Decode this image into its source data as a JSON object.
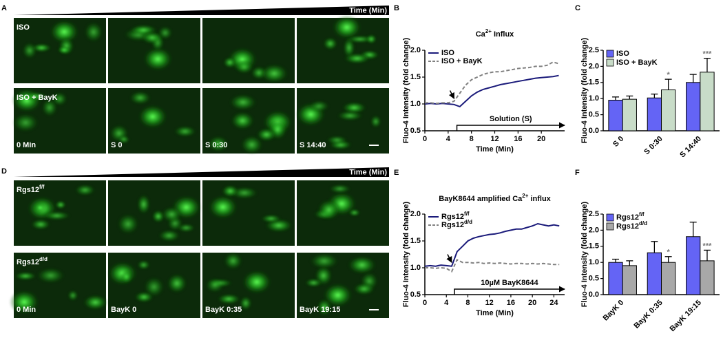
{
  "panel_labels": [
    "A",
    "B",
    "C",
    "D",
    "E",
    "F"
  ],
  "image_panels": [
    {
      "time_label": "Time (Min)",
      "rows": [
        {
          "label": "ISO"
        },
        {
          "label": "ISO + BayK"
        }
      ],
      "captions": [
        "0 Min",
        "S 0",
        "S 0:30",
        "S 14:40"
      ]
    },
    {
      "time_label": "Time (Min)",
      "rows": [
        {
          "label": "Rgs12",
          "label_sup": "f/f"
        },
        {
          "label": "Rgs12",
          "label_sup": "d/d"
        }
      ],
      "captions": [
        "0 Min",
        "BayK 0",
        "BayK 0:35",
        "BayK 19:15"
      ]
    }
  ],
  "chart_data": [
    {
      "type": "line",
      "title": [
        "Ca",
        "2+",
        " Influx"
      ],
      "x_label": "Time (Min)",
      "y_label": "Fluo-4 Intensity (fold change)",
      "x": [
        0,
        1,
        2,
        3,
        4,
        5,
        6,
        7,
        8,
        9,
        10,
        11,
        12,
        13,
        14,
        15,
        16,
        17,
        18,
        19,
        20,
        21,
        22,
        23
      ],
      "series": [
        {
          "name": "ISO",
          "color": "#1a1a7a",
          "line_style": "solid",
          "values": [
            1.0,
            1.01,
            1.0,
            1.01,
            1.0,
            0.99,
            0.95,
            1.05,
            1.15,
            1.22,
            1.27,
            1.3,
            1.33,
            1.36,
            1.38,
            1.4,
            1.42,
            1.44,
            1.46,
            1.48,
            1.49,
            1.5,
            1.51,
            1.53
          ]
        },
        {
          "name": "ISO + BayK",
          "color": "#808080",
          "line_style": "dashed",
          "values": [
            1.02,
            1.02,
            1.01,
            1.02,
            1.02,
            1.05,
            1.2,
            1.35,
            1.45,
            1.5,
            1.55,
            1.58,
            1.6,
            1.6,
            1.62,
            1.64,
            1.66,
            1.67,
            1.68,
            1.7,
            1.7,
            1.72,
            1.78,
            1.75
          ]
        }
      ],
      "annotation": {
        "text": "Solution (S)",
        "start": 5.5
      },
      "xlim": [
        0,
        24
      ],
      "xticks": [
        0,
        4,
        8,
        12,
        16,
        20
      ],
      "ylim": [
        0.5,
        2.0
      ],
      "yticks": [
        0.5,
        {
          "value": 1.0,
          "label": "1.0"
        },
        1.5,
        {
          "value": 2.0,
          "label": "2.0"
        }
      ]
    },
    {
      "type": "bar",
      "y_label": "Fluo-4 Intensity (fold change)",
      "categories": [
        "S 0",
        "S 0:30",
        "S 14:40"
      ],
      "series": [
        {
          "name": "ISO",
          "color": "#6464f5",
          "values": [
            0.95,
            1.02,
            1.5
          ],
          "errors": [
            0.1,
            0.12,
            0.25
          ],
          "annotations": [
            null,
            null,
            null
          ]
        },
        {
          "name": "ISO + BayK",
          "color": "#c8dcc8",
          "values": [
            0.98,
            1.27,
            1.82
          ],
          "errors": [
            0.1,
            0.33,
            0.43
          ],
          "annotations": [
            null,
            "*",
            "***"
          ]
        }
      ],
      "ylim": [
        0,
        2.5
      ],
      "yticks": [
        {
          "value": 0,
          "label": "0.0"
        },
        0.5,
        {
          "value": 1.0,
          "label": "1.0"
        },
        1.5,
        {
          "value": 2.0,
          "label": "2.0"
        },
        2.5
      ]
    },
    {
      "type": "line",
      "title": [
        "BayK8644 amplified Ca",
        "2+",
        " influx"
      ],
      "x_label": "Time (Min)",
      "y_label": "Fluo-4 Intensity (fold change)",
      "x": [
        0,
        1,
        2,
        3,
        4,
        5,
        6,
        7,
        8,
        9,
        10,
        11,
        12,
        13,
        14,
        15,
        16,
        17,
        18,
        19,
        20,
        21,
        22,
        23,
        24,
        25
      ],
      "series": [
        {
          "name": "Rgs12",
          "name_sup": "f/f",
          "color": "#1a1a7a",
          "line_style": "solid",
          "values": [
            1.03,
            1.04,
            1.03,
            1.05,
            1.04,
            1.03,
            1.3,
            1.4,
            1.5,
            1.55,
            1.58,
            1.6,
            1.62,
            1.63,
            1.65,
            1.68,
            1.7,
            1.72,
            1.72,
            1.75,
            1.78,
            1.82,
            1.8,
            1.78,
            1.8,
            1.78
          ]
        },
        {
          "name": "Rgs12",
          "name_sup": "d/d",
          "color": "#808080",
          "line_style": "dashed",
          "values": [
            1.0,
            1.0,
            0.99,
            1.0,
            0.99,
            0.93,
            1.15,
            1.1,
            1.1,
            1.09,
            1.1,
            1.08,
            1.09,
            1.08,
            1.09,
            1.08,
            1.07,
            1.08,
            1.08,
            1.07,
            1.08,
            1.07,
            1.08,
            1.07,
            1.06,
            1.06
          ]
        }
      ],
      "annotation": {
        "text": "10µM BayK8644",
        "start": 5.5
      },
      "xlim": [
        0,
        26
      ],
      "xticks": [
        0,
        4,
        8,
        12,
        16,
        20,
        24
      ],
      "ylim": [
        0.5,
        2.0
      ],
      "yticks": [
        0.5,
        {
          "value": 1.0,
          "label": "1.0"
        },
        1.5,
        {
          "value": 2.0,
          "label": "2.0"
        }
      ]
    },
    {
      "type": "bar",
      "y_label": "Fluo-4 Intensity (fold change)",
      "categories": [
        "BayK 0",
        "BayK 0:35",
        "BayK 19:15"
      ],
      "series": [
        {
          "name": "Rgs12",
          "name_sup": "f/f",
          "color": "#6464f5",
          "values": [
            1.0,
            1.3,
            1.8
          ],
          "errors": [
            0.1,
            0.35,
            0.45
          ],
          "annotations": [
            null,
            null,
            null
          ]
        },
        {
          "name": "Rgs12",
          "name_sup": "d/d",
          "color": "#a8a8a8",
          "values": [
            0.9,
            1.0,
            1.05
          ],
          "errors": [
            0.15,
            0.18,
            0.33
          ],
          "annotations": [
            null,
            "*",
            "***"
          ]
        }
      ],
      "ylim": [
        0,
        2.5
      ],
      "yticks": [
        {
          "value": 0,
          "label": "0.0"
        },
        0.5,
        {
          "value": 1.0,
          "label": "1.0"
        },
        1.5,
        {
          "value": 2.0,
          "label": "2.0"
        },
        2.5
      ]
    }
  ]
}
